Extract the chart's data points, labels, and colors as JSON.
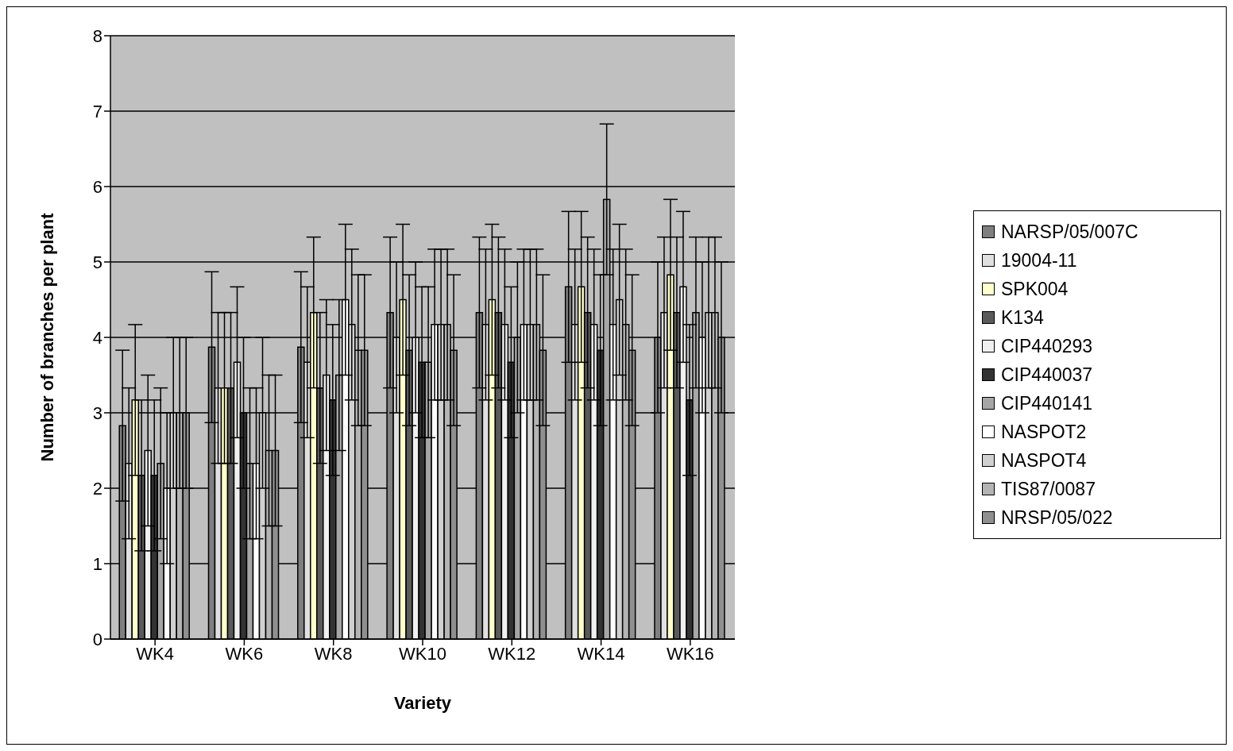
{
  "chart_data": {
    "type": "bar",
    "xlabel": "Variety",
    "ylabel": "Number of branches per plant",
    "categories": [
      "WK4",
      "WK6",
      "WK8",
      "WK10",
      "WK12",
      "WK14",
      "WK16"
    ],
    "series": [
      {
        "name": "NARSP/05/007C",
        "color": "#7f7f7f",
        "values": [
          2.83,
          3.87,
          3.87,
          4.33,
          4.33,
          4.67,
          4.0
        ],
        "errors": [
          1,
          1,
          1,
          1,
          1,
          1,
          1
        ]
      },
      {
        "name": "19004-11",
        "color": "#e0e0e0",
        "values": [
          2.33,
          3.33,
          3.67,
          4.0,
          4.17,
          4.17,
          4.33
        ],
        "errors": [
          1,
          1,
          1,
          1,
          1,
          1,
          1
        ]
      },
      {
        "name": "SPK004",
        "color": "#ffffcc",
        "values": [
          3.17,
          3.33,
          4.33,
          4.5,
          4.5,
          4.67,
          4.83
        ],
        "errors": [
          1,
          1,
          1,
          1,
          1,
          1,
          1
        ]
      },
      {
        "name": "K134",
        "color": "#5a5a5a",
        "values": [
          2.17,
          3.33,
          3.33,
          3.83,
          4.33,
          4.33,
          4.33
        ],
        "errors": [
          1,
          1,
          1,
          1,
          1,
          1,
          1
        ]
      },
      {
        "name": "CIP440293",
        "color": "#f0f0f0",
        "values": [
          2.5,
          3.67,
          3.5,
          4.0,
          4.17,
          4.17,
          4.67
        ],
        "errors": [
          1,
          1,
          1,
          1,
          1,
          1,
          1
        ]
      },
      {
        "name": "CIP440037",
        "color": "#333333",
        "values": [
          2.17,
          3.0,
          3.17,
          3.67,
          3.67,
          3.83,
          3.17
        ],
        "errors": [
          1,
          1,
          1,
          1,
          1,
          1,
          1
        ]
      },
      {
        "name": "CIP440141",
        "color": "#a6a6a6",
        "values": [
          2.33,
          2.33,
          3.5,
          3.67,
          4.0,
          5.83,
          4.33
        ],
        "errors": [
          1,
          1,
          1,
          1,
          1,
          1,
          1
        ]
      },
      {
        "name": "NASPOT2",
        "color": "#ffffff",
        "values": [
          2.0,
          2.33,
          4.5,
          4.17,
          4.17,
          4.17,
          4.0
        ],
        "errors": [
          1,
          1,
          1,
          1,
          1,
          1,
          1
        ]
      },
      {
        "name": "NASPOT4",
        "color": "#d0d0d0",
        "values": [
          3.0,
          3.0,
          4.17,
          4.17,
          4.17,
          4.5,
          4.33
        ],
        "errors": [
          1,
          1,
          1,
          1,
          1,
          1,
          1
        ]
      },
      {
        "name": "TIS87/0087",
        "color": "#b4b4b4",
        "values": [
          3.0,
          2.5,
          3.83,
          4.17,
          4.17,
          4.17,
          4.33
        ],
        "errors": [
          1,
          1,
          1,
          1,
          1,
          1,
          1
        ]
      },
      {
        "name": "NRSP/05/022",
        "color": "#8f8f8f",
        "values": [
          3.0,
          2.5,
          3.83,
          3.83,
          3.83,
          3.83,
          4.0
        ],
        "errors": [
          1,
          1,
          1,
          1,
          1,
          1,
          1
        ]
      }
    ],
    "ylim": [
      0,
      8
    ],
    "yticks": [
      0,
      1,
      2,
      3,
      4,
      5,
      6,
      7,
      8
    ],
    "grid": "y",
    "legend": "right"
  }
}
